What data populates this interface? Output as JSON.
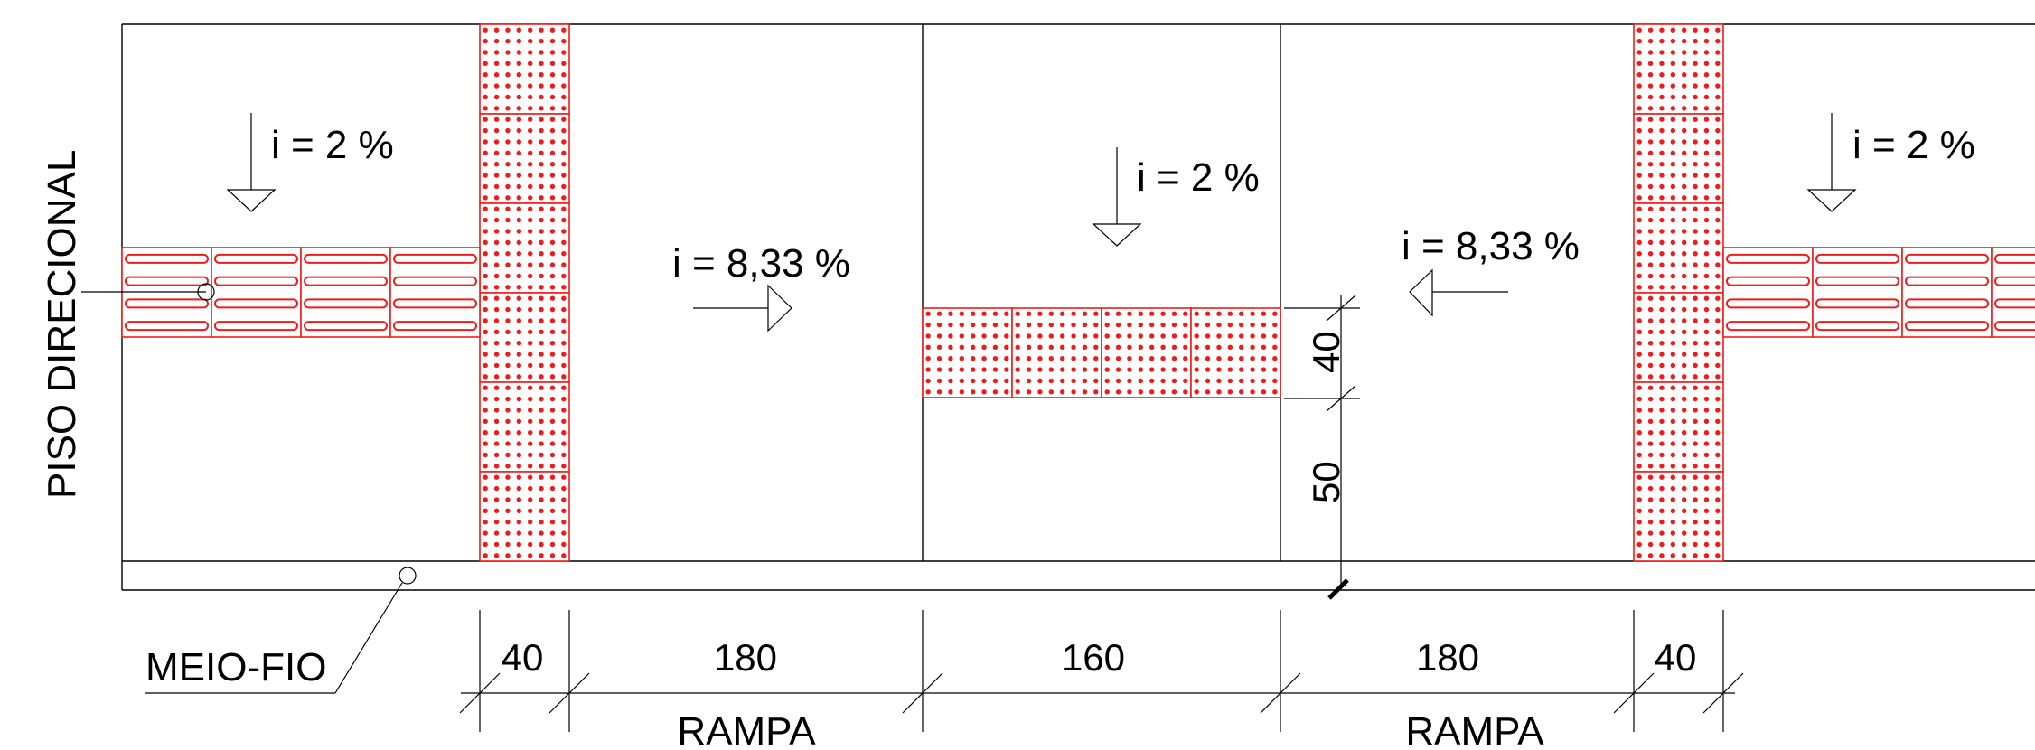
{
  "labels": {
    "side_title": "PISO DIRECIONAL",
    "curb": "MEIO-FIO",
    "ramp_left": "RAMPA",
    "ramp_right": "RAMPA"
  },
  "slopes": {
    "top_left": "i = 2 %",
    "ramp_left": "i = 8,33 %",
    "center": "i = 2 %",
    "ramp_right": "i = 8,33 %",
    "top_right": "i = 2 %"
  },
  "dimensions": {
    "bottom": [
      "40",
      "180",
      "160",
      "180",
      "40"
    ],
    "vertical_tile": "40",
    "vertical_gap": "50"
  },
  "colors": {
    "tactile": "#ee1c1c",
    "lines": "#000000"
  },
  "tile_types": [
    "alerta (dots)",
    "direcional (bars)"
  ]
}
